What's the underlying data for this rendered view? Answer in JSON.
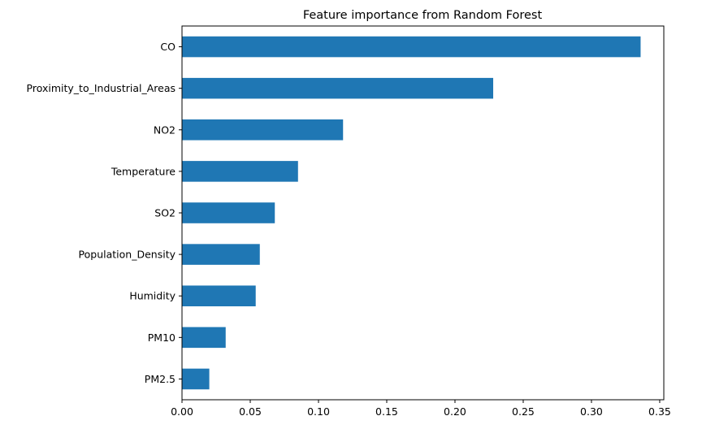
{
  "chart_data": {
    "type": "bar",
    "orientation": "horizontal",
    "title": "Feature importance from Random Forest",
    "xlabel": "",
    "ylabel": "",
    "categories": [
      "PM2.5",
      "PM10",
      "Humidity",
      "Population_Density",
      "SO2",
      "Temperature",
      "NO2",
      "Proximity_to_Industrial_Areas",
      "CO"
    ],
    "values": [
      0.02,
      0.032,
      0.054,
      0.057,
      0.068,
      0.085,
      0.118,
      0.228,
      0.336
    ],
    "xlim": [
      0.0,
      0.353
    ],
    "xticks": [
      0.0,
      0.05,
      0.1,
      0.15,
      0.2,
      0.25,
      0.3,
      0.35
    ],
    "xtick_labels": [
      "0.00",
      "0.05",
      "0.10",
      "0.15",
      "0.20",
      "0.25",
      "0.30",
      "0.35"
    ],
    "bar_color": "#1f77b4",
    "grid": false,
    "legend": "none"
  }
}
